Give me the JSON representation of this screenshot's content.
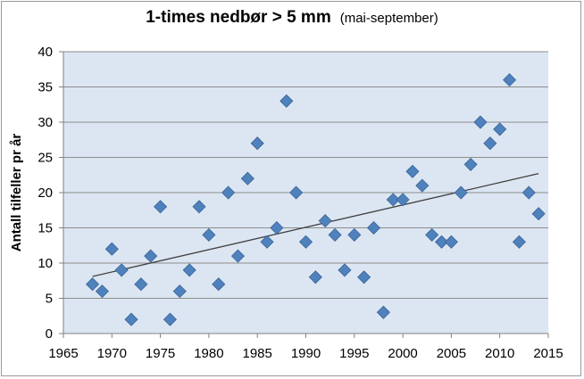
{
  "chart_data": {
    "type": "scatter",
    "title": "1-times nedbør > 5 mm",
    "subtitle": "(mai-september)",
    "xlabel": "",
    "ylabel": "Antall tilfeller pr år",
    "xlim": [
      1965,
      2015
    ],
    "ylim": [
      0,
      40
    ],
    "xticks": [
      1965,
      1970,
      1975,
      1980,
      1985,
      1990,
      1995,
      2000,
      2005,
      2010,
      2015
    ],
    "yticks": [
      0,
      5,
      10,
      15,
      20,
      25,
      30,
      35,
      40
    ],
    "grid": "horizontal",
    "legend": "none",
    "colors": {
      "marker": "#4f81bd",
      "marker_edge": "#3a6596",
      "plot_bg": "#dce6f2",
      "grid": "#8c8c8c",
      "trend": "#404040"
    },
    "points": [
      {
        "x": 1968,
        "y": 7
      },
      {
        "x": 1969,
        "y": 6
      },
      {
        "x": 1970,
        "y": 12
      },
      {
        "x": 1971,
        "y": 9
      },
      {
        "x": 1972,
        "y": 2
      },
      {
        "x": 1973,
        "y": 7
      },
      {
        "x": 1974,
        "y": 11
      },
      {
        "x": 1975,
        "y": 18
      },
      {
        "x": 1976,
        "y": 2
      },
      {
        "x": 1977,
        "y": 6
      },
      {
        "x": 1978,
        "y": 9
      },
      {
        "x": 1979,
        "y": 18
      },
      {
        "x": 1980,
        "y": 14
      },
      {
        "x": 1981,
        "y": 7
      },
      {
        "x": 1982,
        "y": 20
      },
      {
        "x": 1983,
        "y": 11
      },
      {
        "x": 1984,
        "y": 22
      },
      {
        "x": 1985,
        "y": 27
      },
      {
        "x": 1986,
        "y": 13
      },
      {
        "x": 1987,
        "y": 15
      },
      {
        "x": 1988,
        "y": 33
      },
      {
        "x": 1989,
        "y": 20
      },
      {
        "x": 1990,
        "y": 13
      },
      {
        "x": 1991,
        "y": 8
      },
      {
        "x": 1992,
        "y": 16
      },
      {
        "x": 1993,
        "y": 14
      },
      {
        "x": 1994,
        "y": 9
      },
      {
        "x": 1995,
        "y": 14
      },
      {
        "x": 1996,
        "y": 8
      },
      {
        "x": 1997,
        "y": 15
      },
      {
        "x": 1998,
        "y": 3
      },
      {
        "x": 1999,
        "y": 19
      },
      {
        "x": 2000,
        "y": 19
      },
      {
        "x": 2001,
        "y": 23
      },
      {
        "x": 2002,
        "y": 21
      },
      {
        "x": 2003,
        "y": 14
      },
      {
        "x": 2004,
        "y": 13
      },
      {
        "x": 2005,
        "y": 13
      },
      {
        "x": 2006,
        "y": 20
      },
      {
        "x": 2007,
        "y": 24
      },
      {
        "x": 2008,
        "y": 30
      },
      {
        "x": 2009,
        "y": 27
      },
      {
        "x": 2010,
        "y": 29
      },
      {
        "x": 2011,
        "y": 36
      },
      {
        "x": 2012,
        "y": 13
      },
      {
        "x": 2013,
        "y": 20
      },
      {
        "x": 2014,
        "y": 17
      }
    ],
    "trendline": {
      "type": "linear",
      "from": {
        "x": 1968,
        "y": 8.1
      },
      "to": {
        "x": 2014,
        "y": 22.7
      }
    }
  }
}
